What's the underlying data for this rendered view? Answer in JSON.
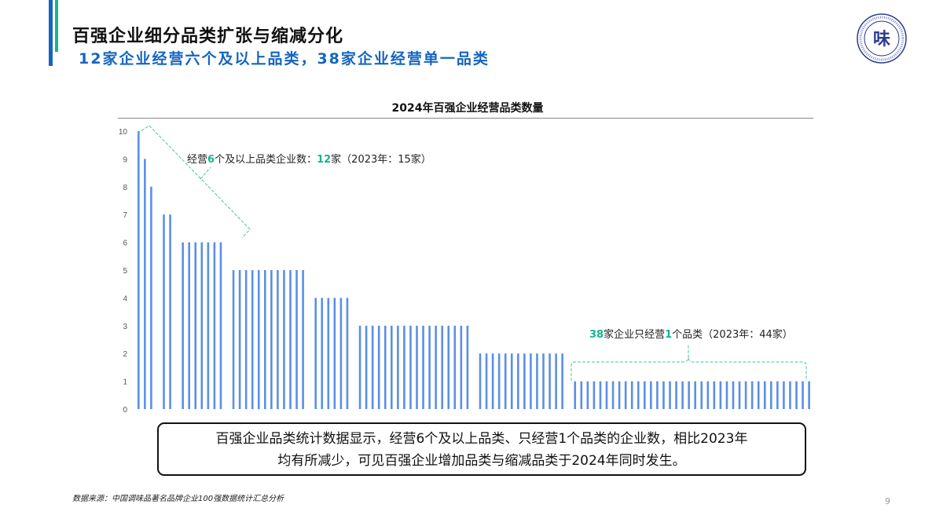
{
  "header": {
    "title": "百强企业细分品类扩张与缩减分化",
    "subtitle": "12家企业经营六个及以上品类，38家企业经营单一品类"
  },
  "logo": {
    "text": "味"
  },
  "colors": {
    "bar": "#5b8fe6",
    "accent_teal": "#17b38f",
    "accent_blue": "#1565c0"
  },
  "chart_data": {
    "type": "bar",
    "title": "2024年百强企业经营品类数量",
    "xlabel": "",
    "ylabel": "",
    "ylim": [
      0,
      10
    ],
    "yticks": [
      "0",
      "1",
      "2",
      "3",
      "4",
      "5",
      "6",
      "7",
      "8",
      "9",
      "10"
    ],
    "grid": false,
    "groups": [
      {
        "value": 10,
        "count": 1
      },
      {
        "value": 9,
        "count": 1
      },
      {
        "value": 8,
        "count": 1
      },
      {
        "value": 7,
        "count": 2
      },
      {
        "value": 6,
        "count": 7
      },
      {
        "value": 5,
        "count": 12
      },
      {
        "value": 4,
        "count": 6
      },
      {
        "value": 3,
        "count": 18
      },
      {
        "value": 2,
        "count": 14
      },
      {
        "value": 1,
        "count": 38
      }
    ],
    "annotations": [
      {
        "pre": "经营",
        "hl1": "6",
        "mid": "个及以上品类企业数：",
        "hl2": "12",
        "post": "家（2023年：15家）"
      },
      {
        "pre": "",
        "hl1": "38",
        "mid": "家企业只经营",
        "hl2": "1",
        "post": "个品类（2023年：44家）"
      }
    ]
  },
  "summary": {
    "line1": "百强企业品类统计数据显示，经营6个及以上品类、只经营1个品类的企业数，相比2023年",
    "line2": "均有所减少，可见百强企业增加品类与缩减品类于2024年同时发生。"
  },
  "footer": {
    "source": "数据来源：中国调味品著名品牌企业100强数据统计汇总分析",
    "page_number": "9"
  }
}
